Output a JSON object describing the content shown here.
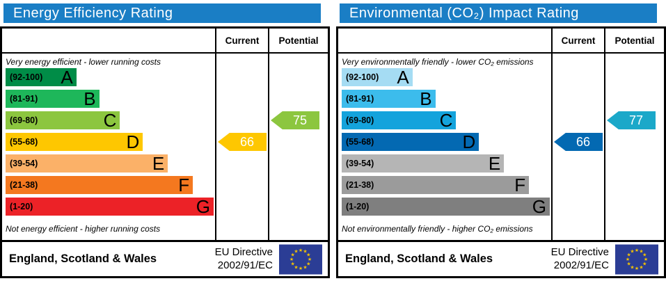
{
  "colors": {
    "title_bar": "#1a7ec5",
    "border": "#000000",
    "flag_blue": "#2b3d95",
    "flag_star": "#f5c400"
  },
  "chart_data": [
    {
      "type": "bar",
      "title": "Energy Efficiency Rating",
      "orientation": "horizontal",
      "categories": [
        "A (92-100)",
        "B (81-91)",
        "C (69-80)",
        "D (55-68)",
        "E (39-54)",
        "F (21-38)",
        "G (1-20)"
      ],
      "values": [
        34,
        45,
        55,
        66,
        78,
        90,
        100
      ],
      "values_note": "relative bar length, % of rating column",
      "current_value": 66,
      "current_band": "D",
      "potential_value": 75,
      "potential_band": "C",
      "top_caption": "Very energy efficient - lower running costs",
      "bottom_caption": "Not energy efficient - higher running costs"
    },
    {
      "type": "bar",
      "title": "Environmental (CO₂) Impact Rating",
      "orientation": "horizontal",
      "categories": [
        "A (92-100)",
        "B (81-91)",
        "C (69-80)",
        "D (55-68)",
        "E (39-54)",
        "F (21-38)",
        "G (1-20)"
      ],
      "values": [
        34,
        45,
        55,
        66,
        78,
        90,
        100
      ],
      "values_note": "relative bar length, % of rating column",
      "current_value": 66,
      "current_band": "D",
      "potential_value": 77,
      "potential_band": "C",
      "top_caption": "Very environmentally friendly - lower CO₂ emissions",
      "bottom_caption": "Not environmentally friendly - higher CO₂ emissions"
    }
  ],
  "panels": [
    {
      "title": "Energy Efficiency Rating",
      "header": {
        "current": "Current",
        "potential": "Potential"
      },
      "top_caption": "Very energy efficient - lower running costs",
      "bottom_caption": "Not energy efficient - higher running costs",
      "bands": [
        {
          "letter": "A",
          "range": "(92-100)",
          "color": "#008c47",
          "width_pct": 34
        },
        {
          "letter": "B",
          "range": "(81-91)",
          "color": "#1eb75a",
          "width_pct": 45
        },
        {
          "letter": "C",
          "range": "(69-80)",
          "color": "#8cc63f",
          "width_pct": 55
        },
        {
          "letter": "D",
          "range": "(55-68)",
          "color": "#fec701",
          "width_pct": 66
        },
        {
          "letter": "E",
          "range": "(39-54)",
          "color": "#fbb168",
          "width_pct": 78
        },
        {
          "letter": "F",
          "range": "(21-38)",
          "color": "#f4781f",
          "width_pct": 90
        },
        {
          "letter": "G",
          "range": "(1-20)",
          "color": "#ec2227",
          "width_pct": 100
        }
      ],
      "current": {
        "value": "66",
        "band": "D",
        "color": "#fec701",
        "row_index": 3
      },
      "potential": {
        "value": "75",
        "band": "C",
        "color": "#8cc63f",
        "row_index": 2
      },
      "footer": {
        "region": "England, Scotland & Wales",
        "directive_line1": "EU Directive",
        "directive_line2": "2002/91/EC"
      }
    },
    {
      "title": "Environmental (CO₂) Impact Rating",
      "header": {
        "current": "Current",
        "potential": "Potential"
      },
      "top_caption": "Very environmentally friendly - lower CO₂ emissions",
      "bottom_caption": "Not environmentally friendly - higher CO₂ emissions",
      "bands": [
        {
          "letter": "A",
          "range": "(92-100)",
          "color": "#a5dcf3",
          "width_pct": 34
        },
        {
          "letter": "B",
          "range": "(81-91)",
          "color": "#3cbcec",
          "width_pct": 45
        },
        {
          "letter": "C",
          "range": "(69-80)",
          "color": "#14a3dc",
          "width_pct": 55
        },
        {
          "letter": "D",
          "range": "(55-68)",
          "color": "#0369b2",
          "width_pct": 66
        },
        {
          "letter": "E",
          "range": "(39-54)",
          "color": "#b5b5b5",
          "width_pct": 78
        },
        {
          "letter": "F",
          "range": "(21-38)",
          "color": "#9b9b9b",
          "width_pct": 90
        },
        {
          "letter": "G",
          "range": "(1-20)",
          "color": "#7f7f7f",
          "width_pct": 100
        }
      ],
      "current": {
        "value": "66",
        "band": "D",
        "color": "#0369b2",
        "row_index": 3
      },
      "potential": {
        "value": "77",
        "band": "C",
        "color": "#1ba8c9",
        "row_index": 2
      },
      "footer": {
        "region": "England, Scotland & Wales",
        "directive_line1": "EU Directive",
        "directive_line2": "2002/91/EC"
      }
    }
  ]
}
